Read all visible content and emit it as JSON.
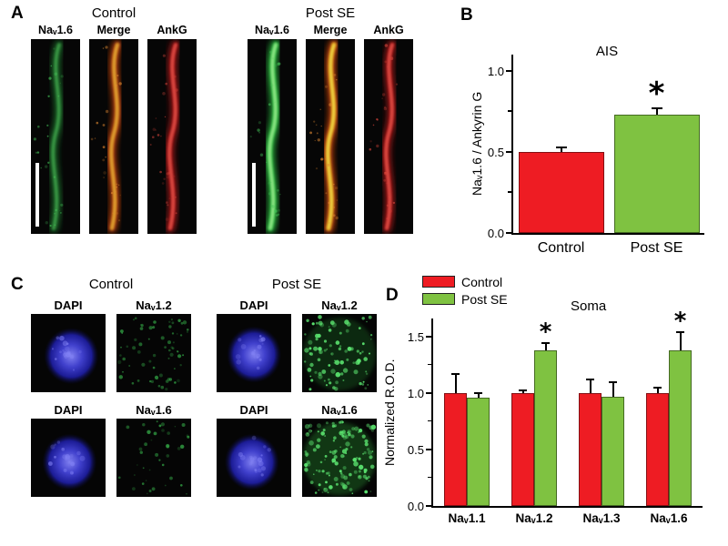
{
  "figure": {
    "panel_a_label": "A",
    "panel_b_label": "B",
    "panel_c_label": "C",
    "panel_d_label": "D"
  },
  "panelA": {
    "groups": [
      {
        "title": "Control",
        "columns": [
          {
            "label": "Naᵥ1.6"
          },
          {
            "label": "Merge"
          },
          {
            "label": "AnkG"
          }
        ]
      },
      {
        "title": "Post SE",
        "columns": [
          {
            "label": "Naᵥ1.6"
          },
          {
            "label": "Merge"
          },
          {
            "label": "AnkG"
          }
        ]
      }
    ]
  },
  "panelC": {
    "groups": [
      {
        "title": "Control",
        "rows": [
          [
            "DAPI",
            "Naᵥ1.2"
          ],
          [
            "DAPI",
            "Naᵥ1.6"
          ]
        ]
      },
      {
        "title": "Post SE",
        "rows": [
          [
            "DAPI",
            "Naᵥ1.2"
          ],
          [
            "DAPI",
            "Naᵥ1.6"
          ]
        ]
      }
    ]
  },
  "chart_data": [
    {
      "id": "panel-B",
      "type": "bar",
      "title": "AIS",
      "ylabel": "Naᵥ1.6 / Ankyrin G",
      "categories": [
        "Control",
        "Post SE"
      ],
      "values": [
        0.5,
        0.73
      ],
      "errors": [
        0.03,
        0.04
      ],
      "significant": [
        false,
        true
      ],
      "colors": [
        "#ee1c23",
        "#7fc241"
      ],
      "ylim": [
        0,
        1.1
      ],
      "yticks": [
        0.0,
        0.5,
        1.0
      ],
      "yticks_minor": [
        0.25,
        0.75
      ],
      "sig_marker": "*",
      "legend_position": "none",
      "grid": false
    },
    {
      "id": "panel-D",
      "type": "bar",
      "title": "Soma",
      "ylabel": "Normalized R.O.D.",
      "categories": [
        "Naᵥ1.1",
        "Naᵥ1.2",
        "Naᵥ1.3",
        "Naᵥ1.6"
      ],
      "series": [
        {
          "name": "Control",
          "color": "#ee1c23",
          "values": [
            1.0,
            1.0,
            1.0,
            1.0
          ],
          "errors": [
            0.17,
            0.02,
            0.12,
            0.05
          ],
          "significant": [
            false,
            false,
            false,
            false
          ]
        },
        {
          "name": "Post SE",
          "color": "#7fc241",
          "values": [
            0.96,
            1.38,
            0.97,
            1.38
          ],
          "errors": [
            0.04,
            0.06,
            0.13,
            0.16
          ],
          "significant": [
            false,
            true,
            false,
            true
          ]
        }
      ],
      "ylim": [
        0,
        1.66
      ],
      "yticks": [
        0.0,
        0.5,
        1.0,
        1.5
      ],
      "yticks_minor": [
        0.25,
        0.75,
        1.25
      ],
      "sig_marker": "*",
      "legend_position": "top-left",
      "grid": false
    }
  ]
}
